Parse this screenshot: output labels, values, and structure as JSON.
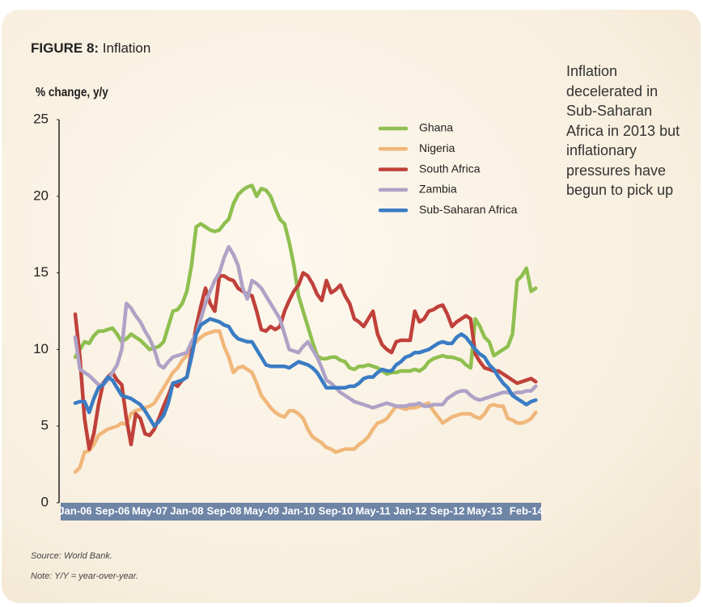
{
  "figure_label": "FIGURE 8:",
  "side_note": "Inflation decelerated in Sub-Saharan Africa in 2013 but inflationary pressures have begun to pick up",
  "source": "Source: World Bank.",
  "note": "Note: Y/Y = year-over-year.",
  "chart_data": {
    "type": "line",
    "title": "Inflation",
    "y_label": "% change, y/y",
    "categories": [
      "Jan-06",
      null,
      null,
      null,
      null,
      null,
      null,
      null,
      "Sep-06",
      null,
      null,
      null,
      null,
      null,
      null,
      null,
      "May-07",
      null,
      null,
      null,
      null,
      null,
      null,
      null,
      "Jan-08",
      null,
      null,
      null,
      null,
      null,
      null,
      null,
      "Sep-08",
      null,
      null,
      null,
      null,
      null,
      null,
      null,
      "May-09",
      null,
      null,
      null,
      null,
      null,
      null,
      null,
      "Jan-10",
      null,
      null,
      null,
      null,
      null,
      null,
      null,
      "Sep-10",
      null,
      null,
      null,
      null,
      null,
      null,
      null,
      "May-11",
      null,
      null,
      null,
      null,
      null,
      null,
      null,
      "Jan-12",
      null,
      null,
      null,
      null,
      null,
      null,
      null,
      "Sep-12",
      null,
      null,
      null,
      null,
      null,
      null,
      null,
      "May-13",
      null,
      null,
      null,
      null,
      null,
      null,
      null,
      null,
      "Feb-14",
      null,
      null
    ],
    "ylim": [
      0,
      25
    ],
    "yticks": [
      0,
      5,
      10,
      15,
      20,
      25
    ],
    "grid": false,
    "series": [
      {
        "name": "Ghana",
        "color": "#8fbf4f",
        "values": [
          9.5,
          10,
          10.5,
          10.4,
          10.9,
          11.2,
          11.2,
          11.3,
          11.4,
          11.0,
          10.5,
          10.7,
          11.0,
          10.8,
          10.6,
          10.3,
          10.0,
          10.1,
          10.2,
          10.5,
          11.5,
          12.5,
          12.6,
          13.0,
          13.8,
          15.5,
          18.0,
          18.2,
          18.0,
          17.8,
          17.7,
          17.8,
          18.2,
          18.5,
          19.5,
          20.1,
          20.4,
          20.6,
          20.7,
          20.0,
          20.5,
          20.4,
          20.0,
          19.2,
          18.5,
          18.2,
          17.0,
          15.5,
          13.5,
          12.5,
          11.5,
          10.5,
          9.6,
          9.4,
          9.4,
          9.5,
          9.5,
          9.3,
          9.2,
          8.8,
          8.7,
          8.9,
          8.9,
          9.0,
          8.9,
          8.8,
          8.6,
          8.4,
          8.5,
          8.5,
          8.6,
          8.6,
          8.6,
          8.7,
          8.6,
          8.8,
          9.2,
          9.4,
          9.5,
          9.6,
          9.5,
          9.5,
          9.4,
          9.3,
          9.0,
          8.8,
          12.0,
          11.5,
          10.8,
          10.5,
          9.6,
          9.8,
          10.0,
          10.2,
          11.0,
          14.5,
          14.8,
          15.3,
          13.8,
          14.0
        ]
      },
      {
        "name": "Nigeria",
        "color": "#f0b77a",
        "values": [
          2.0,
          2.3,
          3.3,
          3.4,
          3.8,
          4.4,
          4.6,
          4.8,
          4.9,
          5.0,
          5.2,
          5.1,
          5.8,
          6.0,
          6.1,
          6.2,
          6.3,
          6.5,
          7.0,
          7.5,
          8.0,
          8.5,
          8.8,
          9.3,
          9.6,
          10.2,
          10.5,
          10.8,
          11.0,
          11.1,
          11.2,
          11.2,
          10.2,
          9.5,
          8.5,
          8.8,
          8.9,
          8.7,
          8.5,
          7.8,
          7.0,
          6.6,
          6.2,
          5.9,
          5.7,
          5.6,
          6.0,
          6.0,
          5.8,
          5.5,
          4.8,
          4.3,
          4.1,
          3.9,
          3.6,
          3.5,
          3.3,
          3.4,
          3.5,
          3.5,
          3.5,
          3.8,
          4.0,
          4.3,
          4.8,
          5.2,
          5.3,
          5.5,
          5.9,
          6.3,
          6.2,
          6.1,
          6.2,
          6.2,
          6.3,
          6.4,
          6.5,
          6.0,
          5.6,
          5.2,
          5.4,
          5.6,
          5.7,
          5.8,
          5.8,
          5.8,
          5.6,
          5.5,
          5.8,
          6.3,
          6.4,
          6.3,
          6.3,
          5.5,
          5.4,
          5.2,
          5.2,
          5.3,
          5.5,
          5.9
        ]
      },
      {
        "name": "South Africa",
        "color": "#c0413a",
        "values": [
          12.3,
          9.5,
          5.5,
          3.5,
          4.5,
          6.4,
          7.8,
          8.2,
          8.5,
          8.0,
          7.7,
          5.5,
          3.8,
          5.8,
          5.5,
          4.5,
          4.4,
          4.8,
          5.5,
          6.3,
          7.0,
          7.8,
          7.6,
          8.0,
          8.2,
          9.8,
          11.5,
          12.8,
          14.0,
          13.0,
          12.5,
          14.8,
          14.8,
          14.6,
          14.5,
          14.0,
          13.8,
          13.6,
          13.5,
          12.5,
          11.3,
          11.2,
          11.5,
          11.3,
          11.5,
          12.5,
          13.2,
          13.8,
          14.2,
          15.0,
          14.8,
          14.3,
          13.6,
          13.2,
          14.5,
          13.7,
          13.9,
          14.2,
          13.5,
          13.0,
          12.0,
          11.8,
          11.5,
          12.0,
          12.5,
          11.0,
          10.3,
          10.0,
          9.8,
          10.5,
          10.6,
          10.6,
          10.6,
          12.5,
          11.8,
          12.0,
          12.5,
          12.6,
          12.8,
          12.9,
          12.3,
          11.5,
          11.8,
          12.0,
          12.2,
          12.0,
          9.7,
          9.2,
          8.8,
          8.7,
          8.6,
          8.6,
          8.4,
          8.2,
          8.0,
          7.8,
          7.9,
          8.0,
          8.1,
          7.9
        ]
      },
      {
        "name": "Zambia",
        "color": "#aea2c6",
        "values": [
          10.8,
          8.7,
          8.5,
          8.3,
          8.0,
          7.7,
          7.7,
          8.0,
          8.5,
          9.0,
          10.0,
          13.0,
          12.7,
          12.2,
          11.8,
          11.2,
          10.7,
          10.0,
          9.0,
          8.8,
          9.2,
          9.5,
          9.6,
          9.7,
          9.8,
          10.5,
          11.0,
          12.0,
          13.0,
          13.8,
          14.5,
          15.0,
          16.0,
          16.7,
          16.2,
          15.5,
          14.0,
          13.3,
          14.5,
          14.3,
          14.0,
          13.5,
          13.0,
          12.5,
          12.0,
          11.0,
          10.0,
          9.9,
          9.8,
          10.2,
          10.5,
          10.0,
          9.5,
          8.8,
          8.0,
          7.8,
          7.5,
          7.2,
          7.0,
          6.8,
          6.6,
          6.5,
          6.4,
          6.3,
          6.2,
          6.3,
          6.4,
          6.5,
          6.4,
          6.3,
          6.3,
          6.3,
          6.4,
          6.4,
          6.5,
          6.3,
          6.3,
          6.4,
          6.4,
          6.4,
          6.8,
          7.0,
          7.2,
          7.3,
          7.3,
          7.0,
          6.8,
          6.7,
          6.8,
          6.9,
          7.0,
          7.1,
          7.2,
          7.2,
          7.1,
          7.2,
          7.2,
          7.3,
          7.3,
          7.6
        ]
      },
      {
        "name": "Sub-Saharan Africa",
        "color": "#3a7cc4",
        "values": [
          6.5,
          6.6,
          6.6,
          5.9,
          6.8,
          7.5,
          7.7,
          8.2,
          8.0,
          7.5,
          7.0,
          6.9,
          6.8,
          6.6,
          6.4,
          6.0,
          5.5,
          5.0,
          5.3,
          5.7,
          6.5,
          7.8,
          7.9,
          8.0,
          8.2,
          9.5,
          11.0,
          11.6,
          11.8,
          12.0,
          11.9,
          11.8,
          11.6,
          11.5,
          11.0,
          10.7,
          10.6,
          10.5,
          10.5,
          10.0,
          9.5,
          9.0,
          8.9,
          8.9,
          8.9,
          8.9,
          8.8,
          9.0,
          9.2,
          9.1,
          9.0,
          8.8,
          8.5,
          8.0,
          7.5,
          7.5,
          7.5,
          7.5,
          7.5,
          7.6,
          7.6,
          7.8,
          8.1,
          8.2,
          8.2,
          8.5,
          8.7,
          8.6,
          8.6,
          9.0,
          9.2,
          9.5,
          9.6,
          9.8,
          9.8,
          9.9,
          10.0,
          10.2,
          10.4,
          10.5,
          10.4,
          10.4,
          10.8,
          11.0,
          10.8,
          10.4,
          10.0,
          9.7,
          9.5,
          9.0,
          8.7,
          8.2,
          7.8,
          7.5,
          7.0,
          6.8,
          6.6,
          6.4,
          6.6,
          6.7
        ]
      }
    ]
  }
}
